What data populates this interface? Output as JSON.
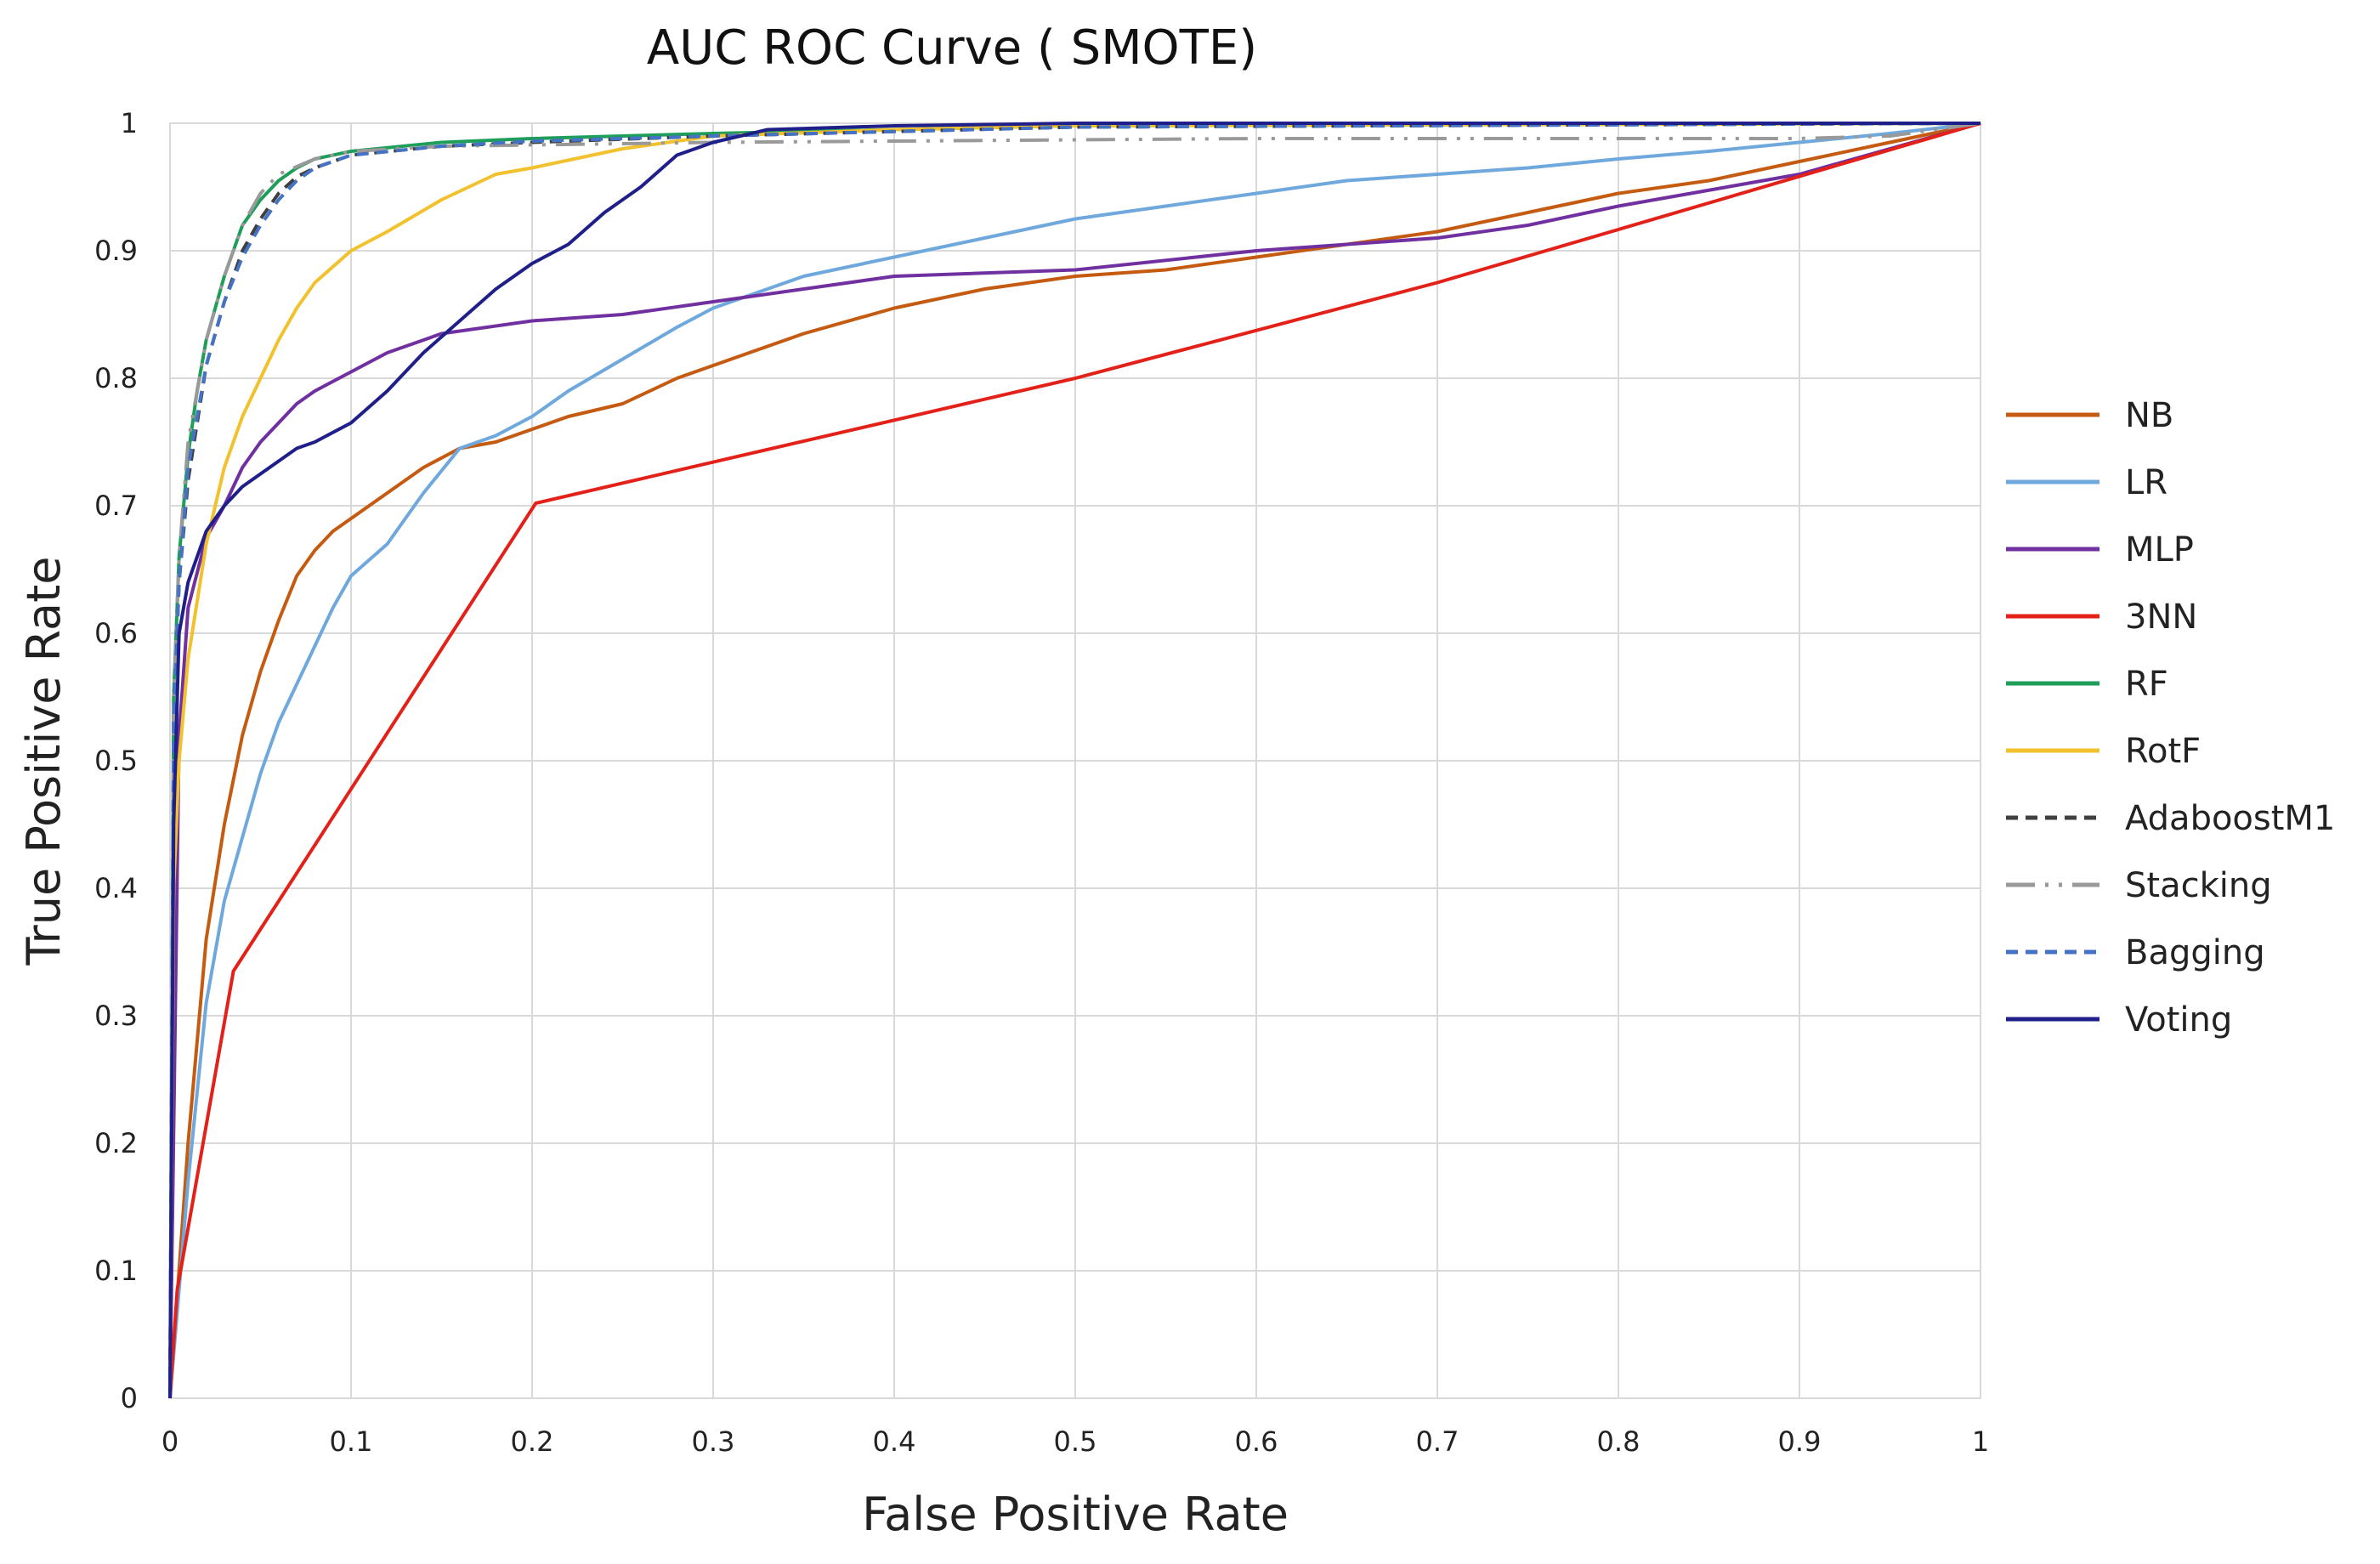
{
  "chart_data": {
    "type": "line",
    "title": "AUC ROC Curve ( SMOTE)",
    "xlabel": "False Positive Rate",
    "ylabel": "True Positive Rate",
    "xlim": [
      0,
      1
    ],
    "ylim": [
      0,
      1
    ],
    "grid": true,
    "legend_position": "right",
    "xticks": [
      "0",
      "0.1",
      "0.2",
      "0.3",
      "0.4",
      "0.5",
      "0.6",
      "0.7",
      "0.8",
      "0.9",
      "1"
    ],
    "yticks": [
      "0",
      "0.1",
      "0.2",
      "0.3",
      "0.4",
      "0.5",
      "0.6",
      "0.7",
      "0.8",
      "0.9",
      "1"
    ],
    "series": [
      {
        "name": "NB",
        "color": "#c55a11",
        "dash": "solid",
        "x": [
          0,
          0.01,
          0.02,
          0.03,
          0.04,
          0.05,
          0.06,
          0.07,
          0.08,
          0.09,
          0.1,
          0.12,
          0.14,
          0.16,
          0.18,
          0.2,
          0.22,
          0.25,
          0.28,
          0.3,
          0.35,
          0.4,
          0.45,
          0.5,
          0.55,
          0.6,
          0.65,
          0.7,
          0.75,
          0.8,
          0.85,
          0.9,
          0.95,
          1.0
        ],
        "y": [
          0,
          0.2,
          0.36,
          0.45,
          0.52,
          0.57,
          0.61,
          0.645,
          0.665,
          0.68,
          0.69,
          0.71,
          0.73,
          0.745,
          0.75,
          0.76,
          0.77,
          0.78,
          0.8,
          0.81,
          0.835,
          0.855,
          0.87,
          0.88,
          0.885,
          0.895,
          0.905,
          0.915,
          0.93,
          0.945,
          0.955,
          0.97,
          0.985,
          1.0
        ]
      },
      {
        "name": "LR",
        "color": "#6fa8dc",
        "dash": "solid",
        "x": [
          0,
          0.01,
          0.02,
          0.03,
          0.04,
          0.05,
          0.06,
          0.07,
          0.08,
          0.09,
          0.1,
          0.12,
          0.14,
          0.16,
          0.18,
          0.2,
          0.22,
          0.25,
          0.28,
          0.3,
          0.35,
          0.4,
          0.45,
          0.5,
          0.55,
          0.6,
          0.65,
          0.7,
          0.75,
          0.8,
          0.85,
          0.9,
          0.95,
          1.0
        ],
        "y": [
          0,
          0.17,
          0.31,
          0.39,
          0.44,
          0.49,
          0.53,
          0.56,
          0.59,
          0.62,
          0.645,
          0.67,
          0.71,
          0.745,
          0.755,
          0.77,
          0.79,
          0.815,
          0.84,
          0.855,
          0.88,
          0.895,
          0.91,
          0.925,
          0.935,
          0.945,
          0.955,
          0.96,
          0.965,
          0.972,
          0.978,
          0.985,
          0.992,
          1.0
        ]
      },
      {
        "name": "MLP",
        "color": "#7030a0",
        "dash": "solid",
        "x": [
          0,
          0.005,
          0.01,
          0.02,
          0.03,
          0.04,
          0.05,
          0.06,
          0.07,
          0.08,
          0.1,
          0.12,
          0.15,
          0.2,
          0.25,
          0.3,
          0.35,
          0.4,
          0.5,
          0.6,
          0.7,
          0.75,
          0.8,
          0.9,
          1.0
        ],
        "y": [
          0,
          0.52,
          0.62,
          0.675,
          0.7,
          0.73,
          0.75,
          0.765,
          0.78,
          0.79,
          0.805,
          0.82,
          0.835,
          0.845,
          0.85,
          0.86,
          0.87,
          0.88,
          0.885,
          0.9,
          0.91,
          0.92,
          0.935,
          0.96,
          1.0
        ]
      },
      {
        "name": "3NN",
        "color": "#e32119",
        "dash": "solid",
        "x": [
          0,
          0.004,
          0.035,
          0.202,
          0.5,
          0.7,
          1.0
        ],
        "y": [
          0,
          0.085,
          0.335,
          0.702,
          0.8,
          0.875,
          1.0
        ]
      },
      {
        "name": "RF",
        "color": "#1f9e5a",
        "dash": "solid",
        "x": [
          0,
          0.002,
          0.005,
          0.01,
          0.015,
          0.02,
          0.03,
          0.04,
          0.05,
          0.06,
          0.07,
          0.08,
          0.1,
          0.15,
          0.2,
          0.3,
          0.5,
          1.0
        ],
        "y": [
          0,
          0.55,
          0.66,
          0.74,
          0.79,
          0.83,
          0.88,
          0.92,
          0.94,
          0.955,
          0.965,
          0.972,
          0.978,
          0.985,
          0.988,
          0.992,
          0.998,
          1.0
        ]
      },
      {
        "name": "RotF",
        "color": "#f2c12e",
        "dash": "solid",
        "x": [
          0,
          0.002,
          0.005,
          0.01,
          0.02,
          0.03,
          0.04,
          0.05,
          0.06,
          0.07,
          0.08,
          0.1,
          0.12,
          0.15,
          0.18,
          0.2,
          0.25,
          0.3,
          0.4,
          0.5,
          1.0
        ],
        "y": [
          0,
          0.4,
          0.5,
          0.58,
          0.67,
          0.73,
          0.77,
          0.8,
          0.83,
          0.855,
          0.875,
          0.9,
          0.915,
          0.94,
          0.96,
          0.965,
          0.98,
          0.99,
          0.995,
          0.998,
          1.0
        ]
      },
      {
        "name": "AdaboostM1",
        "color": "#404040",
        "dash": "dashed",
        "x": [
          0,
          0.002,
          0.005,
          0.01,
          0.02,
          0.03,
          0.04,
          0.05,
          0.06,
          0.07,
          0.08,
          0.1,
          0.15,
          0.2,
          0.3,
          0.5,
          1.0
        ],
        "y": [
          0,
          0.53,
          0.64,
          0.72,
          0.81,
          0.86,
          0.9,
          0.925,
          0.945,
          0.958,
          0.965,
          0.975,
          0.982,
          0.985,
          0.99,
          0.997,
          1.0
        ]
      },
      {
        "name": "Stacking",
        "color": "#999999",
        "dash": "dashdot",
        "x": [
          0,
          0.002,
          0.005,
          0.01,
          0.02,
          0.03,
          0.04,
          0.05,
          0.06,
          0.08,
          0.1,
          0.15,
          0.3,
          0.6,
          0.9,
          0.95,
          1.0
        ],
        "y": [
          0,
          0.55,
          0.66,
          0.75,
          0.83,
          0.88,
          0.92,
          0.945,
          0.96,
          0.972,
          0.978,
          0.982,
          0.985,
          0.988,
          0.988,
          0.99,
          1.0
        ]
      },
      {
        "name": "Bagging",
        "color": "#4472c4",
        "dash": "dashed",
        "x": [
          0,
          0.002,
          0.005,
          0.01,
          0.02,
          0.03,
          0.04,
          0.05,
          0.06,
          0.07,
          0.08,
          0.1,
          0.15,
          0.2,
          0.3,
          0.5,
          1.0
        ],
        "y": [
          0,
          0.53,
          0.64,
          0.73,
          0.81,
          0.86,
          0.895,
          0.92,
          0.94,
          0.955,
          0.965,
          0.975,
          0.982,
          0.986,
          0.99,
          0.997,
          1.0
        ]
      },
      {
        "name": "Voting",
        "color": "#1f1f8a",
        "dash": "solid",
        "x": [
          0,
          0.002,
          0.005,
          0.01,
          0.02,
          0.03,
          0.04,
          0.05,
          0.06,
          0.07,
          0.08,
          0.1,
          0.12,
          0.14,
          0.16,
          0.18,
          0.2,
          0.22,
          0.24,
          0.26,
          0.28,
          0.3,
          0.33,
          0.4,
          0.5,
          1.0
        ],
        "y": [
          0,
          0.45,
          0.6,
          0.64,
          0.68,
          0.7,
          0.715,
          0.725,
          0.735,
          0.745,
          0.75,
          0.765,
          0.79,
          0.82,
          0.845,
          0.87,
          0.89,
          0.905,
          0.93,
          0.95,
          0.975,
          0.985,
          0.995,
          0.998,
          1.0,
          1.0
        ]
      }
    ]
  }
}
